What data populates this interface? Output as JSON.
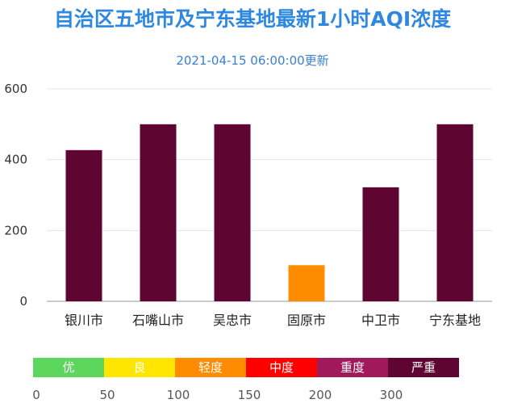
{
  "chart_data": {
    "type": "bar",
    "title": "自治区五地市及宁东基地最新1小时AQI浓度",
    "subtitle": "2021-04-15 06:00:00更新",
    "categories": [
      "银川市",
      "石嘴山市",
      "吴忠市",
      "固原市",
      "中卫市",
      "宁东基地"
    ],
    "values": [
      427,
      500,
      500,
      102,
      322,
      500
    ],
    "ylim": [
      0,
      600
    ],
    "yticks": [
      "0",
      "200",
      "400",
      "600"
    ],
    "grid": true,
    "bar_colors": [
      "#5e0531",
      "#5e0531",
      "#5e0531",
      "#ff8c00",
      "#5e0531",
      "#5e0531"
    ]
  },
  "legend": {
    "segments": [
      {
        "label": "优",
        "color": "#5cd65c"
      },
      {
        "label": "良",
        "color": "#ffe600"
      },
      {
        "label": "轻度",
        "color": "#ff8c00"
      },
      {
        "label": "中度",
        "color": "#ff0000"
      },
      {
        "label": "重度",
        "color": "#a0195a"
      },
      {
        "label": "严重",
        "color": "#5e0531"
      }
    ],
    "ticks": [
      "0",
      "50",
      "100",
      "150",
      "200",
      "300"
    ]
  }
}
